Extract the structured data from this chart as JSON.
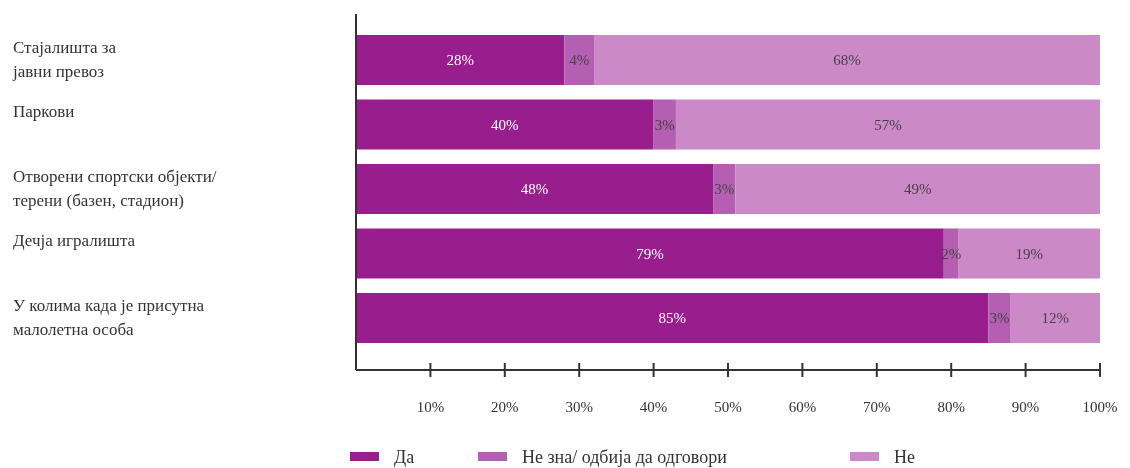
{
  "chart_data": {
    "type": "bar",
    "orientation": "horizontal",
    "stacked": true,
    "categories": [
      "Стајалишта за\nјавни превоз",
      "Паркови",
      "Отворени спортски објекти/\nтерени (базен, стадион)",
      "Дечја игралишта",
      "У колима када је присутна\nмалолетна особа"
    ],
    "series": [
      {
        "name": "Да",
        "color": "#991e8d",
        "values": [
          28,
          40,
          48,
          79,
          85
        ],
        "value_labels": [
          "28%",
          "40%",
          "48%",
          "79%",
          "85%"
        ]
      },
      {
        "name": "Не зна/ одбија да одговори",
        "color": "#b55fb3",
        "values": [
          4,
          3,
          3,
          2,
          3
        ],
        "value_labels": [
          "4%",
          "3%",
          "3%",
          "2%",
          "3%"
        ]
      },
      {
        "name": "Не",
        "color": "#cc89c7",
        "values": [
          68,
          57,
          49,
          19,
          12
        ],
        "value_labels": [
          "68%",
          "57%",
          "49%",
          "19%",
          "12%"
        ]
      }
    ],
    "xlim": [
      0,
      100
    ],
    "xticks": [
      {
        "value": 10,
        "label": "10%"
      },
      {
        "value": 20,
        "label": "20%"
      },
      {
        "value": 30,
        "label": "30%"
      },
      {
        "value": 40,
        "label": "40%"
      },
      {
        "value": 50,
        "label": "50%"
      },
      {
        "value": 60,
        "label": "60%"
      },
      {
        "value": 70,
        "label": "70%"
      },
      {
        "value": 80,
        "label": "80%"
      },
      {
        "value": 90,
        "label": "90%"
      },
      {
        "value": 100,
        "label": "100%"
      }
    ],
    "grid": false,
    "legend": "bottom"
  }
}
